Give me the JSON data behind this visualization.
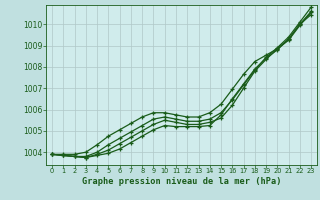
{
  "background_color": "#c0e0e0",
  "plot_bg_color": "#d0ecec",
  "grid_color": "#b0c8c8",
  "line_color": "#1a5c1a",
  "title": "Graphe pression niveau de la mer (hPa)",
  "hours": [
    0,
    1,
    2,
    3,
    4,
    5,
    6,
    7,
    8,
    9,
    10,
    11,
    12,
    13,
    14,
    15,
    16,
    17,
    18,
    19,
    20,
    21,
    22,
    23
  ],
  "ylim": [
    1003.4,
    1010.9
  ],
  "yticks": [
    1004,
    1005,
    1006,
    1007,
    1008,
    1009,
    1010
  ],
  "series1": [
    1003.9,
    1003.85,
    1003.8,
    1003.75,
    1003.85,
    1003.95,
    1004.15,
    1004.45,
    1004.75,
    1005.05,
    1005.25,
    1005.2,
    1005.2,
    1005.2,
    1005.25,
    1005.75,
    1006.5,
    1007.2,
    1007.9,
    1008.4,
    1008.8,
    1009.3,
    1010.0,
    1010.45
  ],
  "series2": [
    1003.9,
    1003.85,
    1003.8,
    1003.75,
    1003.9,
    1004.1,
    1004.4,
    1004.7,
    1005.0,
    1005.3,
    1005.5,
    1005.4,
    1005.3,
    1005.3,
    1005.4,
    1005.6,
    1006.2,
    1007.0,
    1007.8,
    1008.35,
    1008.85,
    1009.3,
    1010.0,
    1010.6
  ],
  "series3": [
    1003.9,
    1003.85,
    1003.8,
    1003.8,
    1004.0,
    1004.35,
    1004.65,
    1004.95,
    1005.25,
    1005.55,
    1005.65,
    1005.55,
    1005.45,
    1005.45,
    1005.55,
    1005.85,
    1006.45,
    1007.15,
    1007.85,
    1008.45,
    1008.9,
    1009.4,
    1010.1,
    1010.8
  ],
  "series4": [
    1003.9,
    1003.9,
    1003.9,
    1004.0,
    1004.35,
    1004.75,
    1005.05,
    1005.35,
    1005.65,
    1005.85,
    1005.85,
    1005.75,
    1005.65,
    1005.65,
    1005.85,
    1006.25,
    1006.95,
    1007.65,
    1008.25,
    1008.55,
    1008.85,
    1009.25,
    1009.95,
    1010.55
  ],
  "marker": "+",
  "marker_size": 3.5,
  "line_width": 0.9
}
